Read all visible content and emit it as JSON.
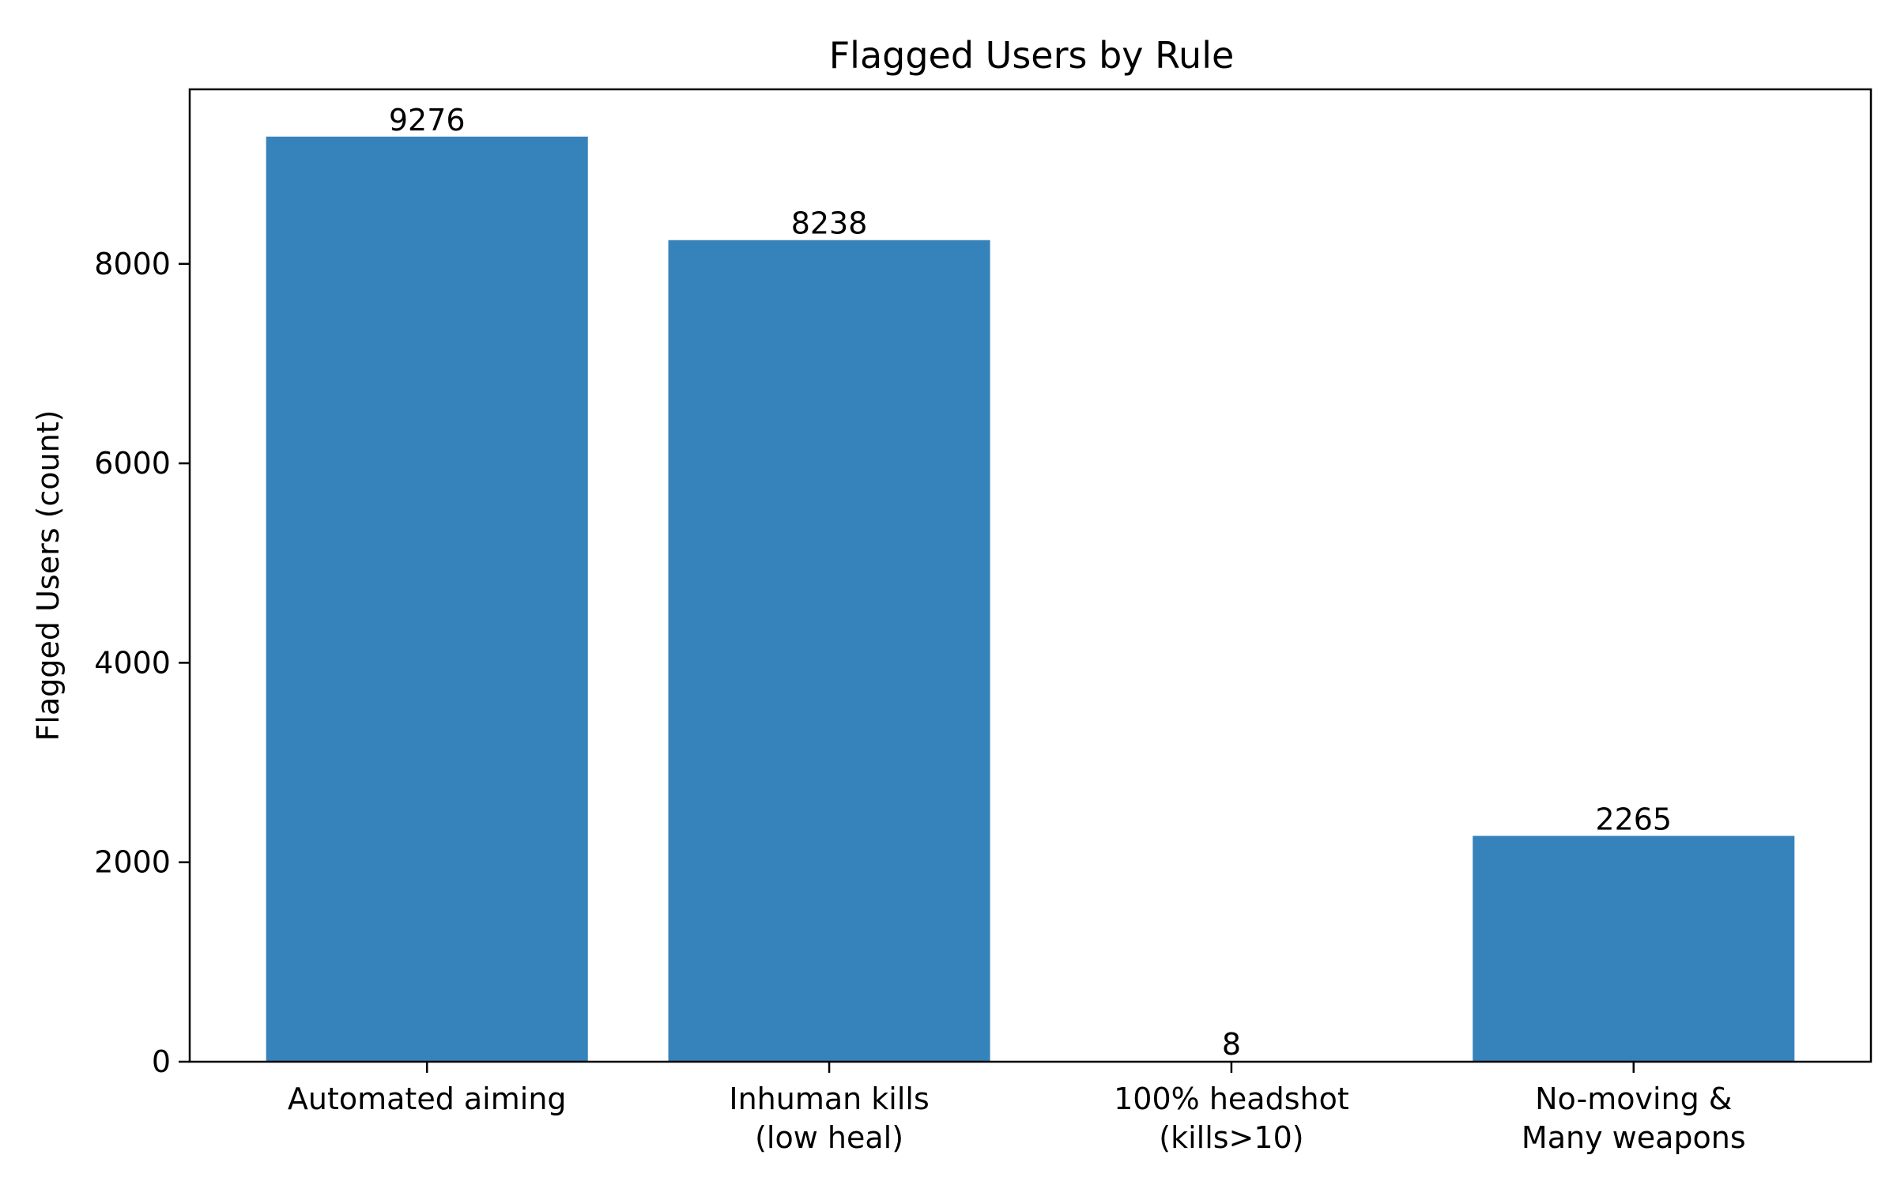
{
  "chart_data": {
    "type": "bar",
    "title": "Flagged Users by Rule",
    "xlabel": "",
    "ylabel": "Flagged Users (count)",
    "categories": [
      [
        "Automated aiming"
      ],
      [
        "Inhuman kills",
        "(low heal)"
      ],
      [
        "100% headshot",
        "(kills>10)"
      ],
      [
        "No-moving &",
        "Many weapons"
      ]
    ],
    "values": [
      9276,
      8238,
      8,
      2265
    ],
    "data_labels": [
      "9276",
      "8238",
      "8",
      "2265"
    ],
    "ylim": [
      0,
      9750
    ],
    "yticks": [
      0,
      2000,
      4000,
      6000,
      8000
    ],
    "ytick_labels": [
      "0",
      "2000",
      "4000",
      "6000",
      "8000"
    ],
    "grid": false,
    "legend": "none",
    "colors": {
      "bar": "#3683bb",
      "axes": "#000000",
      "background": "#ffffff"
    }
  }
}
